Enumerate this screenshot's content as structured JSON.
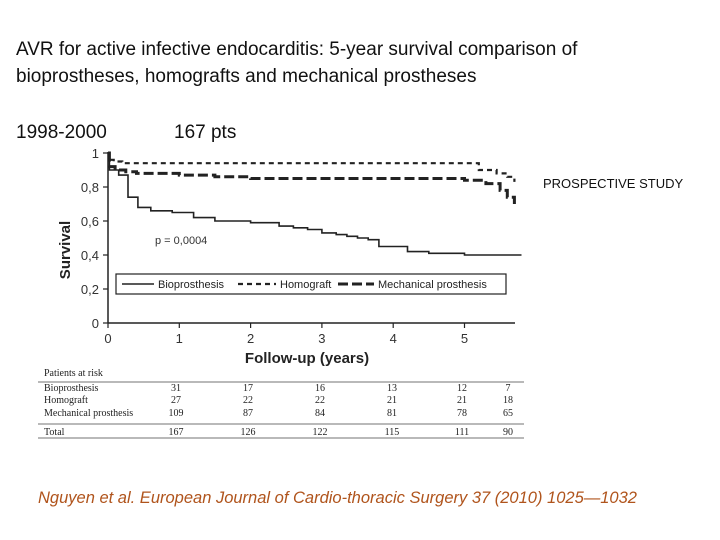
{
  "slide": {
    "title_line1": "AVR for active infective endocarditis: 5-year survival comparison of",
    "title_line2": "bioprostheses, homografts and mechanical prostheses",
    "years": "1998-2000",
    "patients": "167 pts",
    "study_label": "PROSPECTIVE STUDY",
    "citation": "Nguyen et al. European Journal of Cardio-thoracic Surgery 37 (2010) 1025—1032"
  },
  "chart_data": {
    "type": "line",
    "xlabel": "Follow-up (years)",
    "ylabel": "Survival",
    "xlim": [
      0,
      5.8
    ],
    "ylim": [
      0,
      1
    ],
    "x_ticks": [
      "0",
      "1",
      "2",
      "3",
      "4",
      "5"
    ],
    "y_ticks": [
      "0",
      "0,2",
      "0,4",
      "0,6",
      "0,8",
      "1"
    ],
    "annotation": "p = 0,0004",
    "series": [
      {
        "name": "Bioprosthesis",
        "style": "solid",
        "points": [
          [
            0,
            1
          ],
          [
            0.02,
            0.9
          ],
          [
            0.15,
            0.87
          ],
          [
            0.28,
            0.74
          ],
          [
            0.42,
            0.68
          ],
          [
            0.6,
            0.66
          ],
          [
            0.9,
            0.65
          ],
          [
            1.2,
            0.62
          ],
          [
            1.5,
            0.6
          ],
          [
            2.0,
            0.59
          ],
          [
            2.4,
            0.57
          ],
          [
            2.6,
            0.56
          ],
          [
            2.8,
            0.55
          ],
          [
            3.0,
            0.53
          ],
          [
            3.2,
            0.52
          ],
          [
            3.35,
            0.51
          ],
          [
            3.5,
            0.5
          ],
          [
            3.65,
            0.49
          ],
          [
            3.8,
            0.45
          ],
          [
            4.2,
            0.42
          ],
          [
            4.5,
            0.41
          ],
          [
            5.0,
            0.4
          ],
          [
            5.8,
            0.4
          ]
        ]
      },
      {
        "name": "Homograft",
        "style": "short-dash",
        "points": [
          [
            0,
            1
          ],
          [
            0.02,
            0.96
          ],
          [
            0.08,
            0.95
          ],
          [
            0.2,
            0.94
          ],
          [
            0.35,
            0.94
          ],
          [
            1.5,
            0.94
          ],
          [
            3.0,
            0.94
          ],
          [
            5.1,
            0.94
          ],
          [
            5.2,
            0.9
          ],
          [
            5.45,
            0.88
          ],
          [
            5.6,
            0.86
          ],
          [
            5.7,
            0.83
          ]
        ]
      },
      {
        "name": "Mechanical prosthesis",
        "style": "long-dash",
        "points": [
          [
            0,
            1
          ],
          [
            0.02,
            0.92
          ],
          [
            0.1,
            0.9
          ],
          [
            0.25,
            0.89
          ],
          [
            0.4,
            0.88
          ],
          [
            1.0,
            0.87
          ],
          [
            1.5,
            0.86
          ],
          [
            2.0,
            0.85
          ],
          [
            3.0,
            0.85
          ],
          [
            5.0,
            0.84
          ],
          [
            5.3,
            0.82
          ],
          [
            5.5,
            0.78
          ],
          [
            5.6,
            0.74
          ],
          [
            5.7,
            0.7
          ]
        ]
      }
    ],
    "legend": [
      "Bioprosthesis",
      "Homograft",
      "Mechanical prosthesis"
    ]
  },
  "risk_table": {
    "title": "Patients at risk",
    "rows": [
      {
        "label": "Bioprosthesis",
        "values": [
          "31",
          "17",
          "16",
          "13",
          "12",
          "7"
        ]
      },
      {
        "label": "Homograft",
        "values": [
          "27",
          "22",
          "22",
          "21",
          "21",
          "18"
        ]
      },
      {
        "label": "Mechanical prosthesis",
        "values": [
          "109",
          "87",
          "84",
          "81",
          "78",
          "65"
        ]
      },
      {
        "label": "Total",
        "values": [
          "167",
          "126",
          "122",
          "115",
          "111",
          "90"
        ]
      }
    ]
  }
}
